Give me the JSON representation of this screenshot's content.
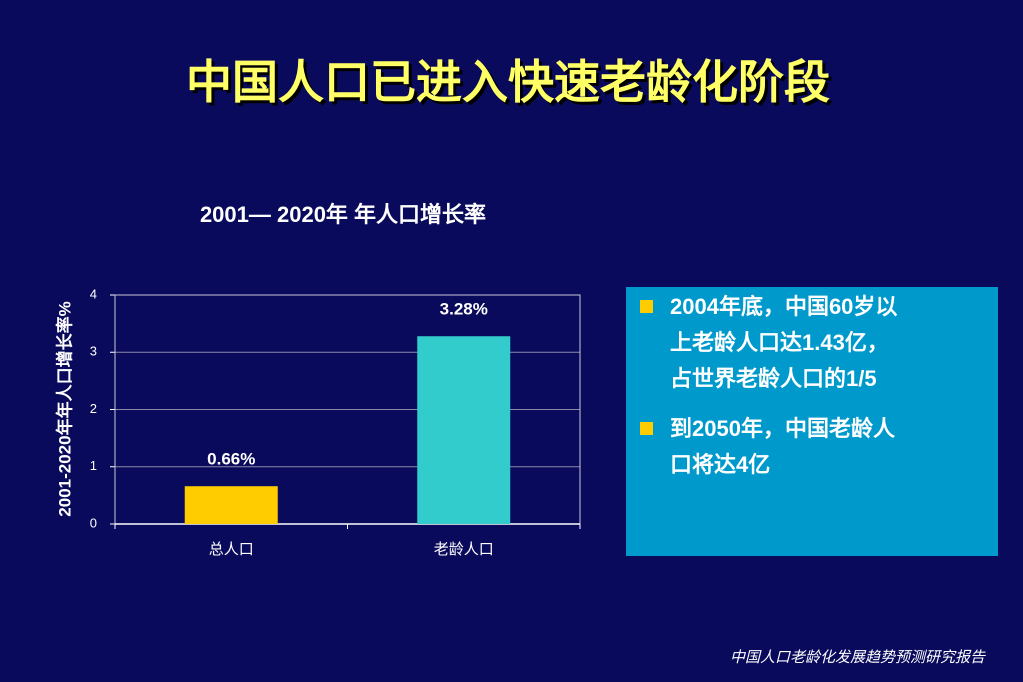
{
  "slide": {
    "title": "中国人口已进入快速老龄化阶段",
    "bullets": [
      [
        "2004年底，中国60岁以",
        "上老龄人口达1.43亿，",
        "占世界老龄人口的1/5"
      ],
      [
        "到2050年，中国老龄人",
        "口将达4亿"
      ]
    ],
    "source": "中国人口老龄化发展趋势预测研究报告"
  },
  "chart_data": {
    "type": "bar",
    "title": "2001— 2020年  年人口增长率",
    "y_label": "2001-2020年年人口增长率%",
    "categories": [
      "总人口",
      "老龄人口"
    ],
    "values": [
      0.66,
      3.28
    ],
    "value_labels": [
      "0.66%",
      "3.28%"
    ],
    "colors": [
      "#ffcc00",
      "#33cccc"
    ],
    "ylim": [
      0,
      4
    ],
    "yticks": [
      0,
      1,
      2,
      3,
      4
    ],
    "grid": true
  }
}
